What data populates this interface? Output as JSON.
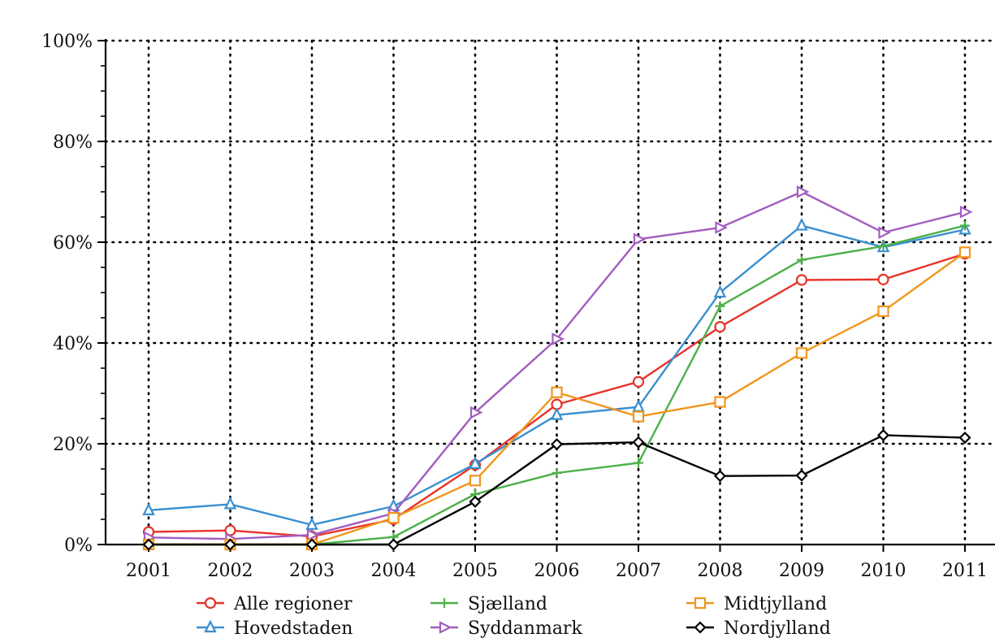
{
  "chart_data": {
    "type": "line",
    "title": "",
    "xlabel": "",
    "ylabel": "",
    "categories": [
      "2001",
      "2002",
      "2003",
      "2004",
      "2005",
      "2006",
      "2007",
      "2008",
      "2009",
      "2010",
      "2011"
    ],
    "y_ticks": [
      "0%",
      "20%",
      "40%",
      "60%",
      "80%",
      "100%"
    ],
    "ylim": [
      0,
      100
    ],
    "grid": "dotted",
    "legend_position": "bottom",
    "series": [
      {
        "name": "Alle regioner",
        "color": "#e8322a",
        "marker": "circle",
        "values": [
          2.5,
          2.8,
          1.6,
          5.0,
          15.8,
          27.8,
          32.3,
          43.2,
          52.5,
          52.6,
          57.7
        ]
      },
      {
        "name": "Hovedstaden",
        "color": "#3a8fcf",
        "marker": "triangle-up",
        "values": [
          6.8,
          8.0,
          3.9,
          7.6,
          16.0,
          25.7,
          27.3,
          50.0,
          63.3,
          59.0,
          62.5
        ]
      },
      {
        "name": "Sjælland",
        "color": "#4db04a",
        "marker": "plus",
        "values": [
          0,
          0,
          0,
          1.5,
          10.0,
          14.2,
          16.2,
          47.3,
          56.5,
          59.2,
          63.3
        ]
      },
      {
        "name": "Syddanmark",
        "color": "#a35cc0",
        "marker": "triangle-right",
        "values": [
          1.4,
          1.1,
          1.9,
          6.2,
          26.2,
          40.8,
          60.6,
          62.9,
          70.0,
          61.9,
          66.0
        ]
      },
      {
        "name": "Midtjylland",
        "color": "#f0961e",
        "marker": "square",
        "values": [
          0,
          0,
          0,
          5.3,
          12.7,
          30.2,
          25.4,
          28.3,
          38.0,
          46.3,
          58.0
        ]
      },
      {
        "name": "Nordjylland",
        "color": "#000000",
        "marker": "diamond",
        "values": [
          0,
          0,
          0,
          0,
          8.5,
          19.9,
          20.3,
          13.6,
          13.7,
          21.7,
          21.2
        ]
      }
    ]
  }
}
